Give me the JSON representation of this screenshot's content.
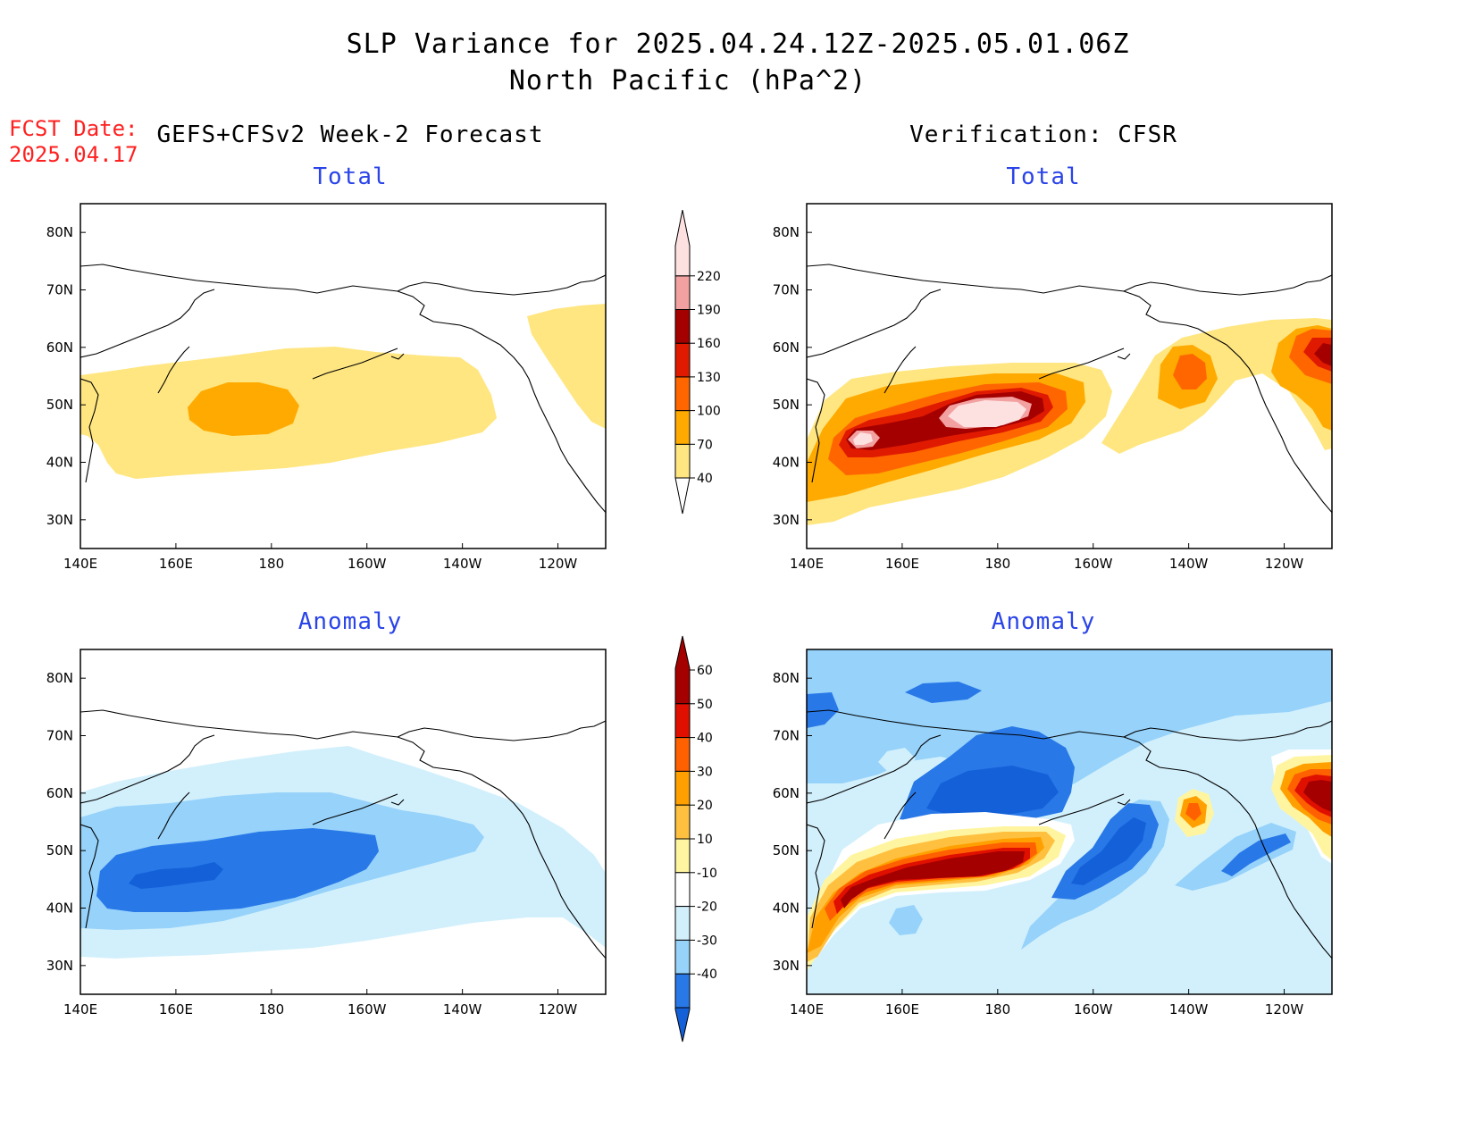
{
  "header": {
    "title_line1": "SLP Variance for 2025.04.24.12Z-2025.05.01.06Z",
    "title_line2": "North Pacific (hPa^2)",
    "fcst_label": "FCST Date:",
    "fcst_date": "2025.04.17",
    "left_column": "GEFS+CFSv2 Week-2 Forecast",
    "right_column": "Verification: CFSR"
  },
  "panels": {
    "fc_total": {
      "title": "Total"
    },
    "ver_total": {
      "title": "Total"
    },
    "fc_anom": {
      "title": "Anomaly"
    },
    "ver_anom": {
      "title": "Anomaly"
    }
  },
  "axes": {
    "lon_ticks": [
      "140E",
      "160E",
      "180",
      "160W",
      "140W",
      "120W"
    ],
    "lat_ticks": [
      "80N",
      "70N",
      "60N",
      "50N",
      "40N",
      "30N"
    ],
    "lon_range_deg_east": [
      140,
      250
    ],
    "lat_range_deg_north": [
      25,
      85
    ]
  },
  "colorbars": {
    "total": {
      "labels": [
        "40",
        "70",
        "100",
        "130",
        "160",
        "190",
        "220"
      ],
      "colors": [
        "#ffe680",
        "#ffaa00",
        "#ff6600",
        "#e01a00",
        "#a50000",
        "#f2a0a0",
        "#fde0e0"
      ],
      "below_color": "#ffffff"
    },
    "anomaly": {
      "labels": [
        "-40",
        "-30",
        "-20",
        "-10",
        "10",
        "20",
        "30",
        "40",
        "50",
        "60"
      ],
      "colors": [
        "#1460d8",
        "#2878e8",
        "#96d2fa",
        "#d2f0fc",
        "#ffffff",
        "#fff5a0",
        "#ffc040",
        "#ffa000",
        "#ff6000",
        "#e01000",
        "#a50000"
      ]
    }
  }
}
